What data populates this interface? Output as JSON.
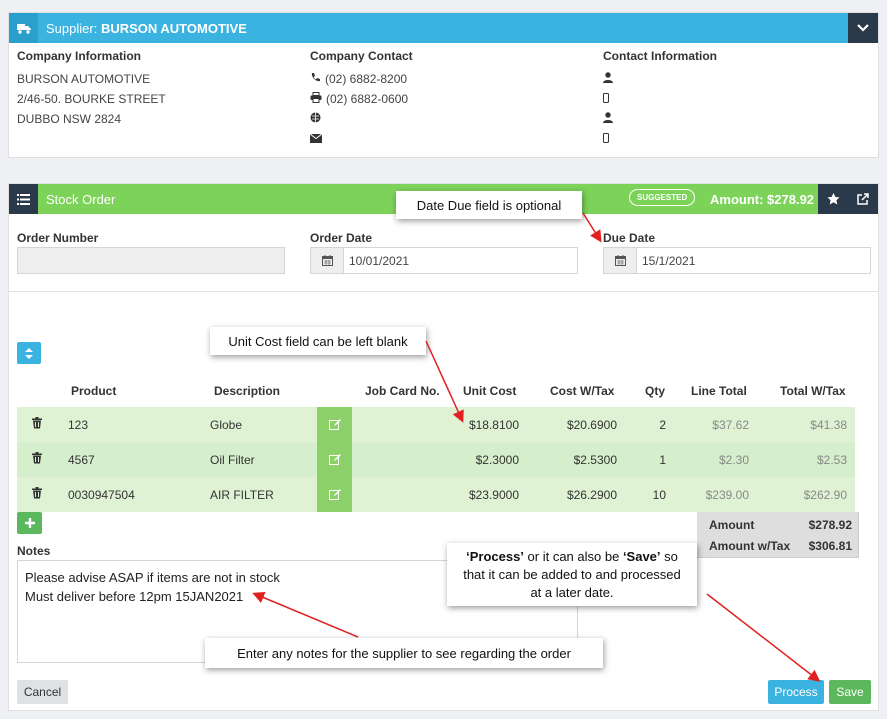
{
  "supplier": {
    "label": "Supplier:",
    "name": "BURSON AUTOMOTIVE",
    "company_info": {
      "heading": "Company Information",
      "lines": [
        "BURSON AUTOMOTIVE",
        "2/46-50. BOURKE STREET",
        "DUBBO NSW 2824"
      ]
    },
    "company_contact": {
      "heading": "Company Contact",
      "phone": "(02) 6882-8200",
      "fax": "(02) 6882-0600"
    },
    "contact_info": {
      "heading": "Contact Information"
    }
  },
  "stock_order": {
    "title": "Stock Order",
    "badge": "SUGGESTED",
    "amount": "Amount: $278.92",
    "order_number": {
      "label": "Order Number",
      "value": ""
    },
    "order_date": {
      "label": "Order Date",
      "value": "10/01/2021"
    },
    "due_date": {
      "label": "Due Date",
      "value": "15/1/2021"
    },
    "columns": [
      "Product",
      "Description",
      "Job Card No.",
      "Unit Cost",
      "Cost W/Tax",
      "Qty",
      "Line Total",
      "Total W/Tax"
    ],
    "rows": [
      {
        "product": "123",
        "description": "Globe",
        "job_card": "",
        "unit_cost": "$18.8100",
        "cost_wtax": "$20.6900",
        "qty": "2",
        "line_total": "$37.62",
        "total_wtax": "$41.38"
      },
      {
        "product": "4567",
        "description": "Oil Filter",
        "job_card": "",
        "unit_cost": "$2.3000",
        "cost_wtax": "$2.5300",
        "qty": "1",
        "line_total": "$2.30",
        "total_wtax": "$2.53"
      },
      {
        "product": "0030947504",
        "description": "AIR FILTER",
        "job_card": "",
        "unit_cost": "$23.9000",
        "cost_wtax": "$26.2900",
        "qty": "10",
        "line_total": "$239.00",
        "total_wtax": "$262.90"
      }
    ],
    "totals": {
      "amount_label": "Amount",
      "amount": "$278.92",
      "amount_tax_label": "Amount w/Tax",
      "amount_tax": "$306.81"
    },
    "notes": {
      "label": "Notes",
      "line1": "Please advise ASAP if items are not in stock",
      "line2": "Must deliver before 12pm 15JAN2021"
    },
    "buttons": {
      "cancel": "Cancel",
      "process": "Process",
      "save": "Save"
    }
  },
  "callouts": {
    "due_date": "Date Due field is optional",
    "unit_cost": "Unit Cost field can be left blank",
    "process_l1a": "‘Process’",
    "process_l1b": " or it can also be ",
    "process_l1c": "‘Save’",
    "process_l1d": " so",
    "process_l2": "that it can be added to and processed",
    "process_l3": "at a later date.",
    "notes": "Enter any notes for the supplier to see regarding the order"
  },
  "colors": {
    "blue": "#3bb3e0",
    "green": "#7dd35a",
    "dark": "#2b3a4a",
    "arrow": "#e02020"
  }
}
